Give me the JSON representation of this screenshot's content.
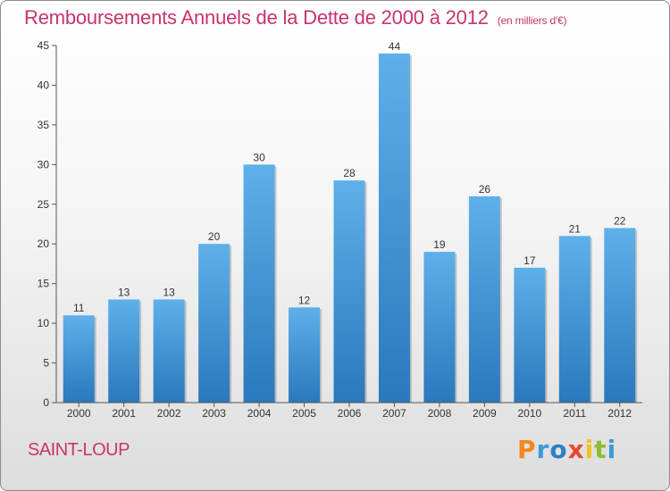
{
  "chart_data": {
    "type": "bar",
    "title": "Remboursements Annuels de la Dette de 2000 à 2012",
    "subtitle": "(en milliers d'€)",
    "categories": [
      "2000",
      "2001",
      "2002",
      "2003",
      "2004",
      "2005",
      "2006",
      "2007",
      "2008",
      "2009",
      "2010",
      "2011",
      "2012"
    ],
    "values": [
      11,
      13,
      13,
      20,
      30,
      12,
      28,
      44,
      19,
      26,
      17,
      21,
      22
    ],
    "ylim": [
      0,
      45
    ],
    "yticks": [
      0,
      5,
      10,
      15,
      20,
      25,
      30,
      35,
      40,
      45
    ],
    "xlabel": "",
    "ylabel": "",
    "grid": false,
    "bar_color": "#3a8fd6"
  },
  "location": "SAINT-LOUP",
  "brand": {
    "letters": [
      "P",
      "r",
      "o",
      "x",
      "i",
      "t",
      "i"
    ],
    "colors": [
      "#f08a1c",
      "#3c9ad6",
      "#2f7fc4",
      "#e64a2e",
      "#f2c21a",
      "#8bbd2c",
      "#3c9ad6"
    ]
  }
}
